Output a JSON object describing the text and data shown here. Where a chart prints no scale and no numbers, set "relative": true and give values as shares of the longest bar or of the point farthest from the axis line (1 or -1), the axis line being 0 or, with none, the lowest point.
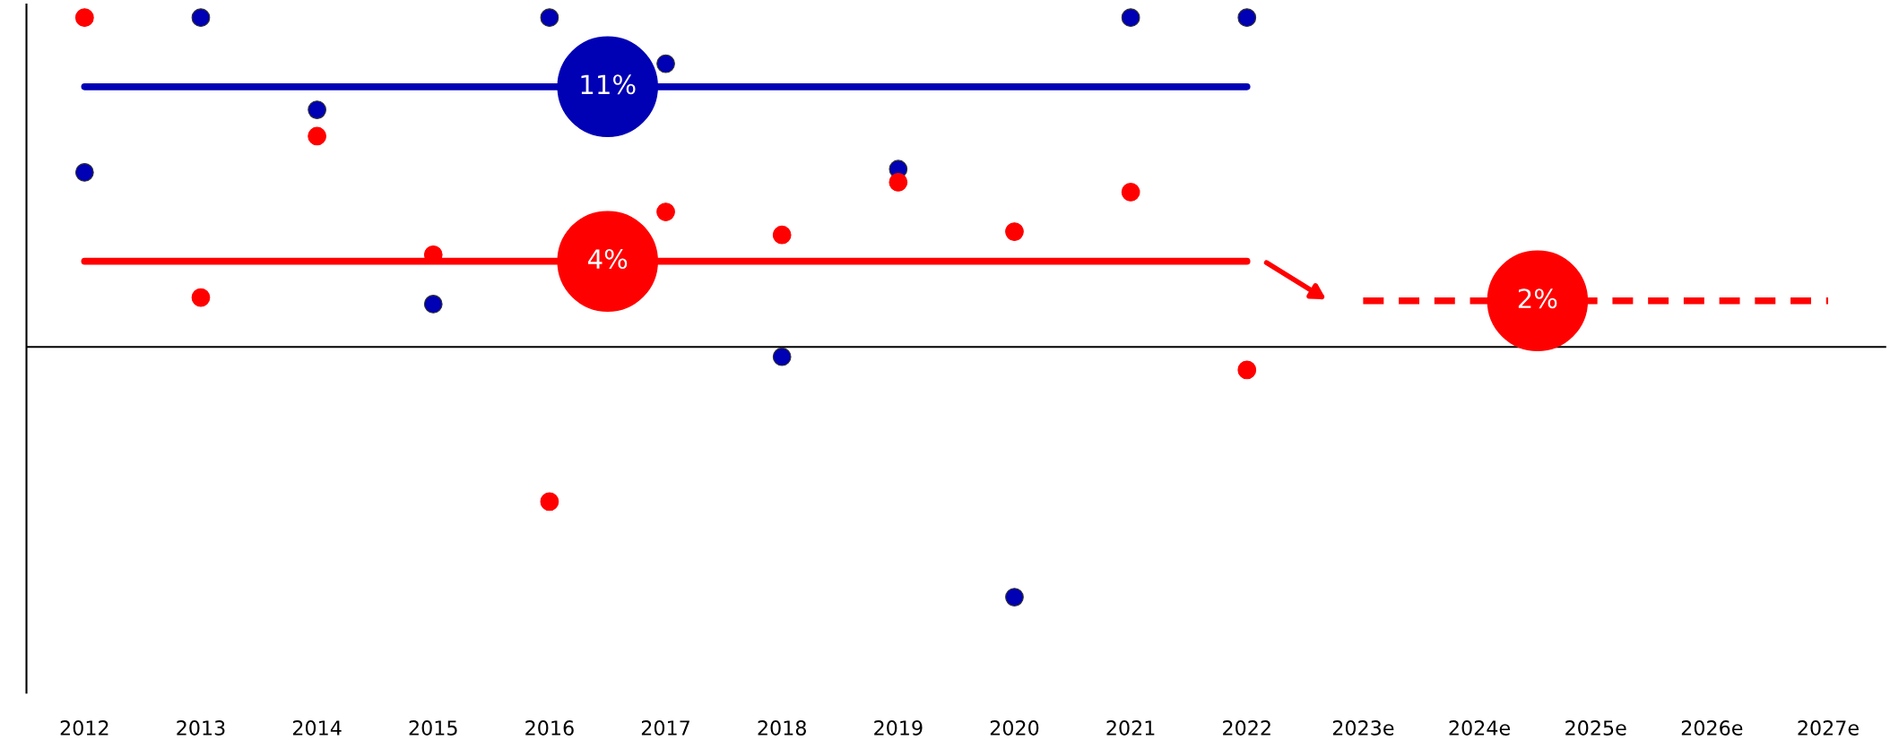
{
  "chart_data": {
    "type": "scatter",
    "relative": true,
    "categories": [
      "2012",
      "2013",
      "2014",
      "2015",
      "2016",
      "2017",
      "2018",
      "2019",
      "2020",
      "2021",
      "2022",
      "2023e",
      "2024e",
      "2025e",
      "2026e",
      "2027e"
    ],
    "marker": "circle",
    "legend": false,
    "grid": false,
    "series": [
      {
        "type": "line",
        "name": "11%",
        "color": "#0000b4",
        "line_style": "solid",
        "marker": "none",
        "values": [
          0.79,
          0.79,
          0.79,
          0.79,
          0.79,
          0.79,
          0.79,
          0.79,
          0.79,
          0.79,
          0.79,
          null,
          null,
          null,
          null,
          null
        ]
      },
      {
        "type": "line",
        "name": "4%",
        "color": "#ff0000",
        "line_style": "solid",
        "marker": "none",
        "values": [
          0.26,
          0.26,
          0.26,
          0.26,
          0.26,
          0.26,
          0.26,
          0.26,
          0.26,
          0.26,
          0.26,
          null,
          null,
          null,
          null,
          null
        ]
      },
      {
        "type": "line",
        "name": "2%",
        "color": "#ff0000",
        "line_style": "dashed",
        "marker": "none",
        "values": [
          null,
          null,
          null,
          null,
          null,
          null,
          null,
          null,
          null,
          null,
          null,
          0.14,
          0.14,
          0.14,
          0.14,
          0.14
        ]
      },
      {
        "color": "#0000b4",
        "values": [
          0.53,
          1,
          0.72,
          0.13,
          1,
          0.86,
          -0.03,
          0.54,
          -0.76,
          1,
          1,
          null,
          null,
          null,
          null,
          null
        ]
      },
      {
        "color": "#ff0000",
        "values": [
          1,
          0.15,
          0.64,
          0.28,
          -0.47,
          0.41,
          0.34,
          0.5,
          0.35,
          0.47,
          -0.07,
          null,
          null,
          null,
          null,
          null
        ]
      }
    ]
  }
}
